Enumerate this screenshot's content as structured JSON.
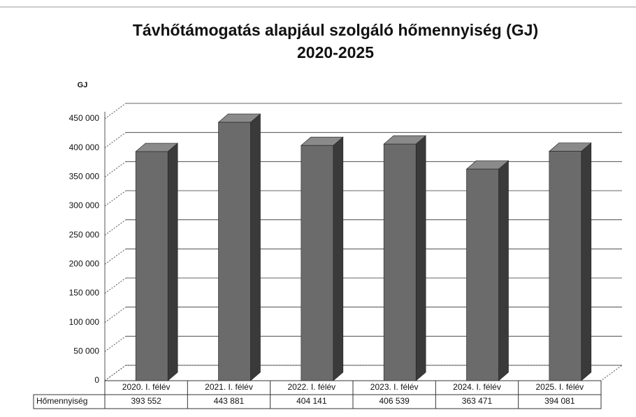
{
  "chart_data": {
    "type": "bar3d",
    "title": "Távhőtámogatás alapjául szolgáló hőmennyiség (GJ)",
    "subtitle": "2020-2025",
    "y_axis_label": "GJ",
    "categories": [
      "2020. I. félév",
      "2021. I. félév",
      "2022. I. félév",
      "2023. I. félév",
      "2024. I. félév",
      "2025. I. félév"
    ],
    "series": [
      {
        "name": "Hőmennyiség",
        "color": "#6b6b6b",
        "values": [
          393552,
          443881,
          404141,
          406539,
          363471,
          394081
        ],
        "value_labels": [
          "393 552",
          "443 881",
          "404 141",
          "406 539",
          "363 471",
          "394 081"
        ]
      }
    ],
    "ylim": [
      0,
      450000
    ],
    "yticks": [
      0,
      {
        "value": 50000,
        "label": "50 000"
      },
      {
        "value": 100000,
        "label": "100 000"
      },
      {
        "value": 150000,
        "label": "150 000"
      },
      {
        "value": 200000,
        "label": "200 000"
      },
      {
        "value": 250000,
        "label": "250 000"
      },
      {
        "value": 300000,
        "label": "300 000"
      },
      {
        "value": 350000,
        "label": "350 000"
      },
      {
        "value": 400000,
        "label": "400 000"
      },
      {
        "value": 450000,
        "label": "450 000"
      }
    ],
    "grid": true
  }
}
